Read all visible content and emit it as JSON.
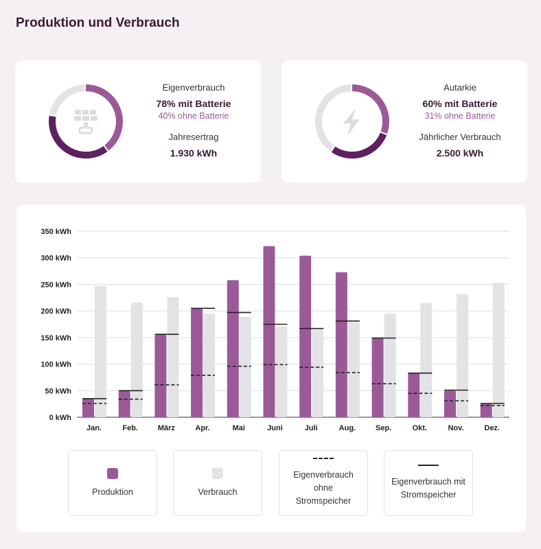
{
  "title": "Produktion und Verbrauch",
  "colors": {
    "production": "#9b5a97",
    "consumption": "#e3e2e4",
    "dark": "#5e2160",
    "line": "#222222"
  },
  "kpi1": {
    "label": "Eigenverbrauch",
    "main": "78% mit Batterie",
    "sub": "40% ohne Batterie",
    "label2": "Jahresertrag",
    "value2": "1.930 kWh",
    "icon": "solar-panel-icon",
    "with_pct": 78,
    "without_pct": 40
  },
  "kpi2": {
    "label": "Autarkie",
    "main": "60% mit Batterie",
    "sub": "31% ohne Batterie",
    "label2": "Jährlicher Verbrauch",
    "value2": "2.500 kWh",
    "icon": "lightning-icon",
    "with_pct": 60,
    "without_pct": 31
  },
  "legend": [
    {
      "label": "Produktion"
    },
    {
      "label": "Verbrauch"
    },
    {
      "label": "Eigenverbrauch ohne Stromspeicher"
    },
    {
      "label": "Eigenverbrauch mit Stromspeicher"
    }
  ],
  "chart_data": {
    "type": "bar",
    "categories": [
      "Jan.",
      "Feb.",
      "März",
      "Apr.",
      "Mai",
      "Juni",
      "Juli",
      "Aug.",
      "Sep.",
      "Okt.",
      "Nov.",
      "Dez."
    ],
    "ylim": [
      0,
      350
    ],
    "yticks": [
      0,
      50,
      100,
      150,
      200,
      250,
      300,
      350
    ],
    "ytick_labels": [
      "0 kWh",
      "50 kWh",
      "100 kWh",
      "150 kWh",
      "200 kWh",
      "250 kWh",
      "300 kWh",
      "350 kWh"
    ],
    "grid": true,
    "series": [
      {
        "name": "Produktion",
        "type": "bar",
        "values": [
          35,
          49,
          155,
          204,
          258,
          322,
          304,
          273,
          149,
          83,
          50,
          25
        ]
      },
      {
        "name": "Verbrauch",
        "type": "bar",
        "values": [
          247,
          216,
          226,
          195,
          189,
          171,
          165,
          178,
          195,
          215,
          232,
          253
        ]
      },
      {
        "name": "Eigenverbrauch ohne Stromspeicher",
        "type": "dashed-line",
        "values": [
          26,
          34,
          61,
          79,
          96,
          99,
          94,
          84,
          63,
          45,
          31,
          22
        ]
      },
      {
        "name": "Eigenverbrauch mit Stromspeicher",
        "type": "solid-line",
        "values": [
          35,
          50,
          156,
          205,
          197,
          175,
          167,
          181,
          149,
          83,
          51,
          26
        ]
      }
    ]
  }
}
